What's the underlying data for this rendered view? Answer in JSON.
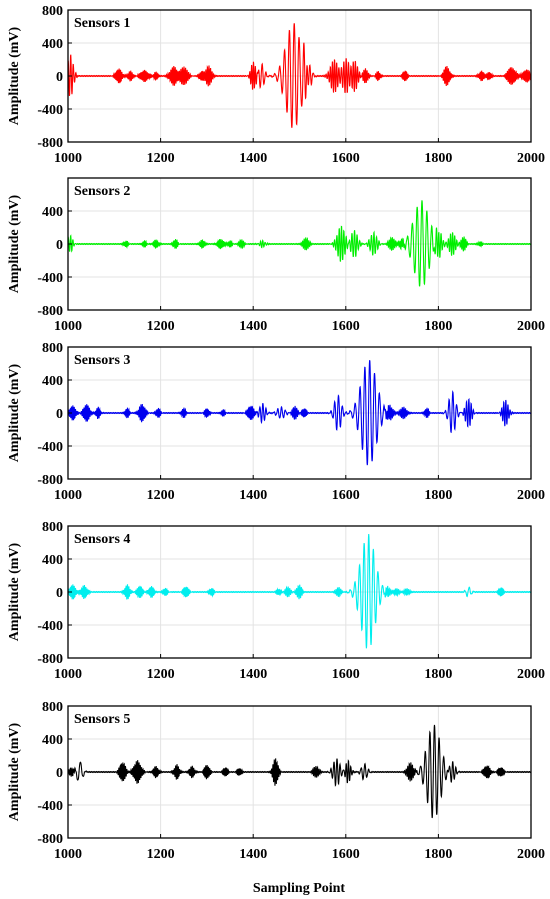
{
  "chart_data": {
    "type": "line",
    "xlabel": "Sampling Point",
    "ylabel": "Amplitude (mV)",
    "xlim": [
      1000,
      2000
    ],
    "ylim": [
      -800,
      800
    ],
    "xticks": [
      "1000",
      "1200",
      "1400",
      "1600",
      "1800",
      "2000"
    ],
    "grid": true,
    "panels": [
      {
        "title": "Sensors 1",
        "color": "#ff0000",
        "yticks": [
          "800",
          "400",
          "0",
          "-400",
          "-800"
        ],
        "bursts": [
          {
            "center": 1005,
            "amp": 260,
            "width": 6,
            "freq": 0.18
          },
          {
            "center": 1110,
            "amp": 90,
            "width": 6,
            "freq": 0.35
          },
          {
            "center": 1135,
            "amp": 60,
            "width": 5,
            "freq": 0.35
          },
          {
            "center": 1165,
            "amp": 70,
            "width": 8,
            "freq": 0.35
          },
          {
            "center": 1190,
            "amp": 50,
            "width": 4,
            "freq": 0.35
          },
          {
            "center": 1228,
            "amp": 120,
            "width": 7,
            "freq": 0.32
          },
          {
            "center": 1250,
            "amp": 110,
            "width": 8,
            "freq": 0.3
          },
          {
            "center": 1288,
            "amp": 60,
            "width": 4,
            "freq": 0.35
          },
          {
            "center": 1304,
            "amp": 130,
            "width": 6,
            "freq": 0.3
          },
          {
            "center": 1400,
            "amp": 180,
            "width": 5,
            "freq": 0.25
          },
          {
            "center": 1418,
            "amp": 150,
            "width": 6,
            "freq": 0.12
          },
          {
            "center": 1487,
            "amp": 650,
            "width": 16,
            "freq": 0.095
          },
          {
            "center": 1515,
            "amp": 220,
            "width": 7,
            "freq": 0.15
          },
          {
            "center": 1575,
            "amp": 200,
            "width": 8,
            "freq": 0.22
          },
          {
            "center": 1600,
            "amp": 220,
            "width": 8,
            "freq": 0.2
          },
          {
            "center": 1620,
            "amp": 180,
            "width": 6,
            "freq": 0.22
          },
          {
            "center": 1642,
            "amp": 90,
            "width": 5,
            "freq": 0.3
          },
          {
            "center": 1670,
            "amp": 60,
            "width": 4,
            "freq": 0.35
          },
          {
            "center": 1728,
            "amp": 70,
            "width": 4,
            "freq": 0.35
          },
          {
            "center": 1818,
            "amp": 120,
            "width": 6,
            "freq": 0.32
          },
          {
            "center": 1893,
            "amp": 60,
            "width": 5,
            "freq": 0.35
          },
          {
            "center": 1910,
            "amp": 50,
            "width": 4,
            "freq": 0.35
          },
          {
            "center": 1958,
            "amp": 110,
            "width": 8,
            "freq": 0.32
          },
          {
            "center": 1990,
            "amp": 80,
            "width": 7,
            "freq": 0.32
          }
        ]
      },
      {
        "title": "Sensors 2",
        "color": "#00ee00",
        "yticks": [
          "400",
          "0",
          "-400",
          "-800"
        ],
        "bursts": [
          {
            "center": 1005,
            "amp": 100,
            "width": 5,
            "freq": 0.2
          },
          {
            "center": 1125,
            "amp": 40,
            "width": 4,
            "freq": 0.35
          },
          {
            "center": 1165,
            "amp": 40,
            "width": 4,
            "freq": 0.35
          },
          {
            "center": 1190,
            "amp": 50,
            "width": 5,
            "freq": 0.35
          },
          {
            "center": 1232,
            "amp": 60,
            "width": 4,
            "freq": 0.35
          },
          {
            "center": 1290,
            "amp": 50,
            "width": 5,
            "freq": 0.35
          },
          {
            "center": 1330,
            "amp": 60,
            "width": 6,
            "freq": 0.35
          },
          {
            "center": 1350,
            "amp": 40,
            "width": 4,
            "freq": 0.35
          },
          {
            "center": 1375,
            "amp": 50,
            "width": 5,
            "freq": 0.3
          },
          {
            "center": 1420,
            "amp": 40,
            "width": 6,
            "freq": 0.2
          },
          {
            "center": 1513,
            "amp": 80,
            "width": 6,
            "freq": 0.3
          },
          {
            "center": 1590,
            "amp": 220,
            "width": 8,
            "freq": 0.2
          },
          {
            "center": 1618,
            "amp": 170,
            "width": 7,
            "freq": 0.18
          },
          {
            "center": 1660,
            "amp": 140,
            "width": 7,
            "freq": 0.18
          },
          {
            "center": 1700,
            "amp": 80,
            "width": 6,
            "freq": 0.3
          },
          {
            "center": 1720,
            "amp": 60,
            "width": 5,
            "freq": 0.3
          },
          {
            "center": 1763,
            "amp": 530,
            "width": 16,
            "freq": 0.095
          },
          {
            "center": 1800,
            "amp": 170,
            "width": 7,
            "freq": 0.2
          },
          {
            "center": 1830,
            "amp": 140,
            "width": 7,
            "freq": 0.22
          },
          {
            "center": 1855,
            "amp": 90,
            "width": 5,
            "freq": 0.3
          },
          {
            "center": 1890,
            "amp": 30,
            "width": 4,
            "freq": 0.35
          }
        ]
      },
      {
        "title": "Sensors 3",
        "color": "#0000ee",
        "yticks": [
          "800",
          "400",
          "0",
          "-400",
          "-800"
        ],
        "bursts": [
          {
            "center": 1010,
            "amp": 90,
            "width": 6,
            "freq": 0.35
          },
          {
            "center": 1040,
            "amp": 110,
            "width": 6,
            "freq": 0.35
          },
          {
            "center": 1065,
            "amp": 70,
            "width": 4,
            "freq": 0.35
          },
          {
            "center": 1128,
            "amp": 60,
            "width": 4,
            "freq": 0.35
          },
          {
            "center": 1160,
            "amp": 110,
            "width": 6,
            "freq": 0.35
          },
          {
            "center": 1195,
            "amp": 60,
            "width": 4,
            "freq": 0.35
          },
          {
            "center": 1250,
            "amp": 60,
            "width": 4,
            "freq": 0.35
          },
          {
            "center": 1300,
            "amp": 60,
            "width": 4,
            "freq": 0.35
          },
          {
            "center": 1335,
            "amp": 40,
            "width": 4,
            "freq": 0.35
          },
          {
            "center": 1395,
            "amp": 90,
            "width": 6,
            "freq": 0.35
          },
          {
            "center": 1420,
            "amp": 120,
            "width": 6,
            "freq": 0.15
          },
          {
            "center": 1460,
            "amp": 70,
            "width": 8,
            "freq": 0.12
          },
          {
            "center": 1490,
            "amp": 80,
            "width": 5,
            "freq": 0.3
          },
          {
            "center": 1510,
            "amp": 60,
            "width": 4,
            "freq": 0.35
          },
          {
            "center": 1583,
            "amp": 220,
            "width": 7,
            "freq": 0.12
          },
          {
            "center": 1650,
            "amp": 650,
            "width": 16,
            "freq": 0.095
          },
          {
            "center": 1695,
            "amp": 100,
            "width": 6,
            "freq": 0.3
          },
          {
            "center": 1725,
            "amp": 80,
            "width": 6,
            "freq": 0.3
          },
          {
            "center": 1775,
            "amp": 60,
            "width": 4,
            "freq": 0.35
          },
          {
            "center": 1830,
            "amp": 260,
            "width": 7,
            "freq": 0.12
          },
          {
            "center": 1865,
            "amp": 180,
            "width": 6,
            "freq": 0.2
          },
          {
            "center": 1945,
            "amp": 160,
            "width": 6,
            "freq": 0.22
          }
        ]
      },
      {
        "title": "Sensors 4",
        "color": "#00eeee",
        "yticks": [
          "800",
          "400",
          "0",
          "-400",
          "-800"
        ],
        "bursts": [
          {
            "center": 1010,
            "amp": 90,
            "width": 6,
            "freq": 0.35
          },
          {
            "center": 1035,
            "amp": 80,
            "width": 6,
            "freq": 0.35
          },
          {
            "center": 1128,
            "amp": 90,
            "width": 5,
            "freq": 0.35
          },
          {
            "center": 1155,
            "amp": 80,
            "width": 5,
            "freq": 0.35
          },
          {
            "center": 1180,
            "amp": 70,
            "width": 5,
            "freq": 0.35
          },
          {
            "center": 1210,
            "amp": 50,
            "width": 4,
            "freq": 0.35
          },
          {
            "center": 1255,
            "amp": 70,
            "width": 5,
            "freq": 0.35
          },
          {
            "center": 1310,
            "amp": 50,
            "width": 4,
            "freq": 0.35
          },
          {
            "center": 1455,
            "amp": 40,
            "width": 4,
            "freq": 0.35
          },
          {
            "center": 1475,
            "amp": 60,
            "width": 5,
            "freq": 0.3
          },
          {
            "center": 1500,
            "amp": 90,
            "width": 5,
            "freq": 0.3
          },
          {
            "center": 1585,
            "amp": 60,
            "width": 5,
            "freq": 0.3
          },
          {
            "center": 1648,
            "amp": 700,
            "width": 15,
            "freq": 0.1
          },
          {
            "center": 1690,
            "amp": 60,
            "width": 5,
            "freq": 0.3
          },
          {
            "center": 1710,
            "amp": 50,
            "width": 5,
            "freq": 0.3
          },
          {
            "center": 1732,
            "amp": 50,
            "width": 5,
            "freq": 0.3
          },
          {
            "center": 1865,
            "amp": 60,
            "width": 5,
            "freq": 0.1
          },
          {
            "center": 1935,
            "amp": 60,
            "width": 4,
            "freq": 0.35
          }
        ]
      },
      {
        "title": "Sensors 5",
        "color": "#000000",
        "yticks": [
          "800",
          "400",
          "0",
          "-400",
          "-800"
        ],
        "bursts": [
          {
            "center": 1008,
            "amp": 60,
            "width": 5,
            "freq": 0.3
          },
          {
            "center": 1025,
            "amp": 130,
            "width": 6,
            "freq": 0.08
          },
          {
            "center": 1118,
            "amp": 120,
            "width": 6,
            "freq": 0.35
          },
          {
            "center": 1150,
            "amp": 140,
            "width": 7,
            "freq": 0.35
          },
          {
            "center": 1190,
            "amp": 70,
            "width": 5,
            "freq": 0.35
          },
          {
            "center": 1235,
            "amp": 90,
            "width": 5,
            "freq": 0.35
          },
          {
            "center": 1268,
            "amp": 70,
            "width": 5,
            "freq": 0.35
          },
          {
            "center": 1300,
            "amp": 90,
            "width": 5,
            "freq": 0.35
          },
          {
            "center": 1340,
            "amp": 60,
            "width": 4,
            "freq": 0.35
          },
          {
            "center": 1370,
            "amp": 50,
            "width": 4,
            "freq": 0.35
          },
          {
            "center": 1448,
            "amp": 170,
            "width": 5,
            "freq": 0.35
          },
          {
            "center": 1535,
            "amp": 70,
            "width": 6,
            "freq": 0.3
          },
          {
            "center": 1580,
            "amp": 170,
            "width": 7,
            "freq": 0.15
          },
          {
            "center": 1605,
            "amp": 140,
            "width": 5,
            "freq": 0.2
          },
          {
            "center": 1640,
            "amp": 100,
            "width": 6,
            "freq": 0.12
          },
          {
            "center": 1740,
            "amp": 120,
            "width": 6,
            "freq": 0.3
          },
          {
            "center": 1790,
            "amp": 580,
            "width": 14,
            "freq": 0.1
          },
          {
            "center": 1830,
            "amp": 120,
            "width": 6,
            "freq": 0.15
          },
          {
            "center": 1905,
            "amp": 80,
            "width": 6,
            "freq": 0.35
          },
          {
            "center": 1935,
            "amp": 60,
            "width": 5,
            "freq": 0.35
          }
        ]
      }
    ]
  }
}
